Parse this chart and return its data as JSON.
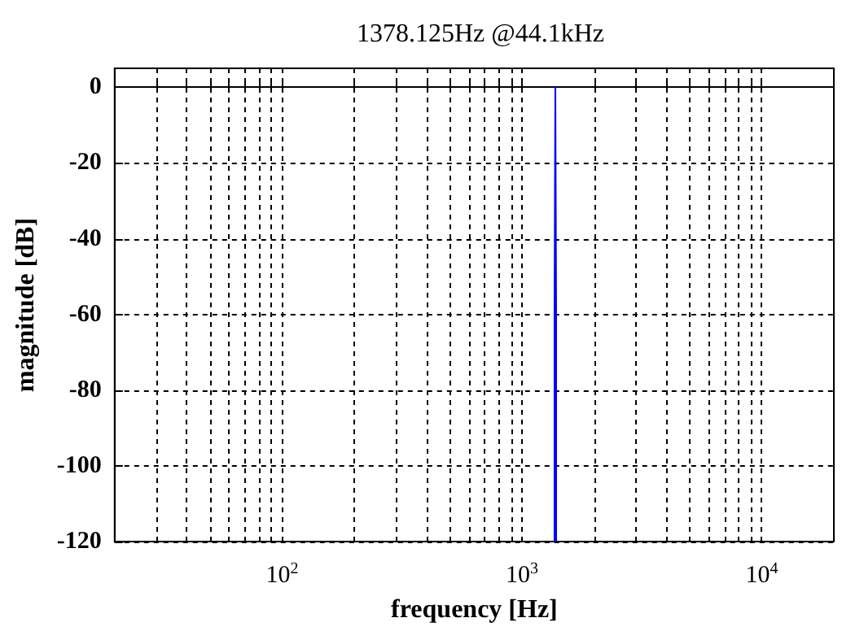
{
  "chart_data": {
    "type": "line",
    "title": "1378.125Hz @44.1kHz",
    "xlabel": "frequency [Hz]",
    "ylabel": "magnitude [dB]",
    "x": [
      1367,
      1367,
      1378.125,
      1389,
      1389
    ],
    "series": [
      {
        "color": "#0000ff",
        "values": [
          -120,
          -60,
          0,
          -60,
          -120
        ]
      }
    ],
    "log": "x",
    "xlim": [
      20,
      20000
    ],
    "xticks": [
      {
        "value": 30,
        "label": null
      },
      {
        "value": 40,
        "label": null
      },
      {
        "value": 50,
        "label": null
      },
      {
        "value": 60,
        "label": null
      },
      {
        "value": 70,
        "label": null
      },
      {
        "value": 80,
        "label": null
      },
      {
        "value": 90,
        "label": null
      },
      {
        "value": 100,
        "label": "10$^{2}$"
      },
      {
        "value": 200,
        "label": null
      },
      {
        "value": 300,
        "label": null
      },
      {
        "value": 400,
        "label": null
      },
      {
        "value": 500,
        "label": null
      },
      {
        "value": 600,
        "label": null
      },
      {
        "value": 700,
        "label": null
      },
      {
        "value": 800,
        "label": null
      },
      {
        "value": 900,
        "label": null
      },
      {
        "value": 1000,
        "label": "10$^{3}$"
      },
      {
        "value": 2000,
        "label": null
      },
      {
        "value": 3000,
        "label": null
      },
      {
        "value": 4000,
        "label": null
      },
      {
        "value": 5000,
        "label": null
      },
      {
        "value": 6000,
        "label": null
      },
      {
        "value": 7000,
        "label": null
      },
      {
        "value": 8000,
        "label": null
      },
      {
        "value": 9000,
        "label": null
      },
      {
        "value": 10000,
        "label": "10$^{4}$"
      }
    ],
    "ylim": [
      -120,
      5
    ],
    "yticks": [
      -120,
      -100,
      -80,
      -60,
      -40,
      -20,
      0
    ],
    "grid": true,
    "line_style": "solid",
    "marker": "none"
  }
}
